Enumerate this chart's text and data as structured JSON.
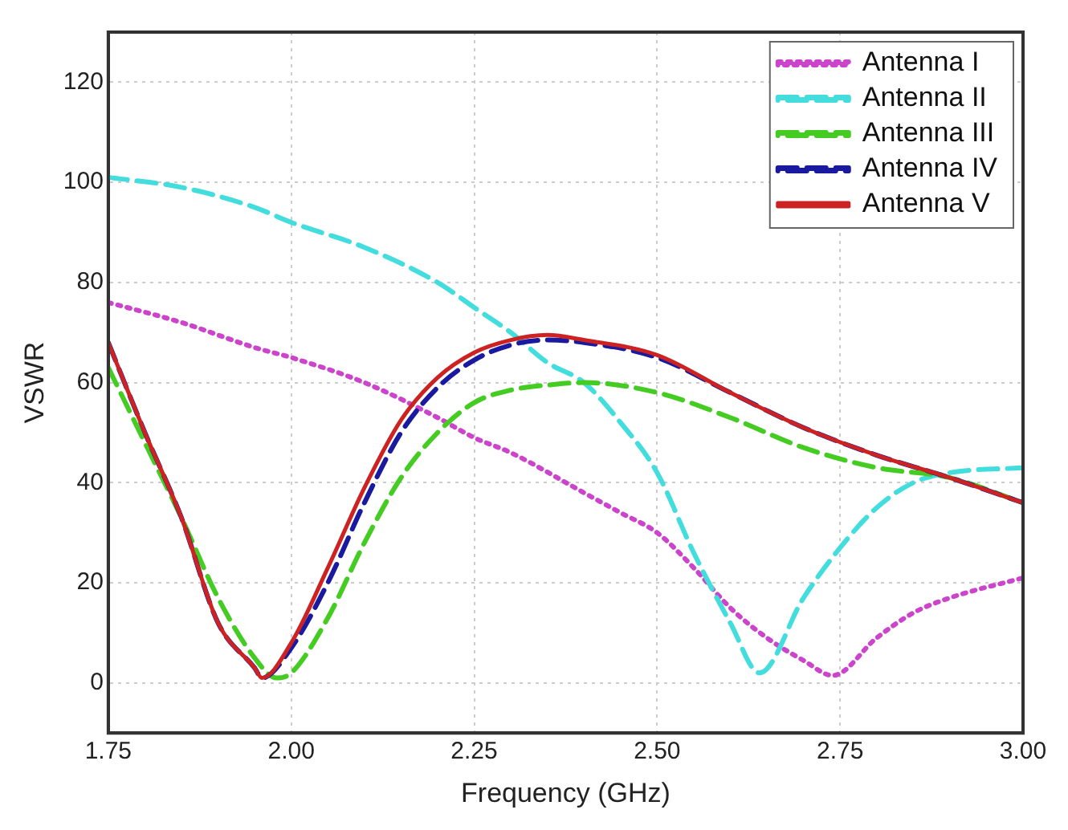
{
  "chart_data": {
    "type": "line",
    "xlabel": "Frequency (GHz)",
    "ylabel": "VSWR",
    "xlim": [
      1.75,
      3.0
    ],
    "xticks": [
      {
        "value": 1.75,
        "label": "1.75"
      },
      {
        "value": 2.0,
        "label": "2.00"
      },
      {
        "value": 2.25,
        "label": "2.25"
      },
      {
        "value": 2.5,
        "label": "2.50"
      },
      {
        "value": 2.75,
        "label": "2.75"
      },
      {
        "value": 3.0,
        "label": "3.00"
      }
    ],
    "ylim": [
      -10,
      130
    ],
    "yticks": [
      0,
      20,
      40,
      60,
      80,
      100,
      120
    ],
    "grid": true,
    "legend": "top right",
    "marker": "none",
    "series": [
      {
        "name": "Antenna I",
        "color": "#cc44cc",
        "line_style": "dotted",
        "x": [
          1.75,
          1.85,
          1.95,
          2.0,
          2.1,
          2.2,
          2.25,
          2.3,
          2.4,
          2.45,
          2.5,
          2.55,
          2.6,
          2.65,
          2.7,
          2.74,
          2.8,
          2.85,
          2.9,
          3.0
        ],
        "values": [
          76,
          72,
          67,
          65,
          60,
          53,
          49,
          46,
          38,
          34,
          30,
          23,
          15,
          9,
          4.5,
          1.5,
          9,
          14,
          17,
          21
        ]
      },
      {
        "name": "Antenna II",
        "color": "#44dddd",
        "line_style": "dashed",
        "x": [
          1.75,
          1.85,
          1.95,
          2.0,
          2.1,
          2.2,
          2.25,
          2.3,
          2.35,
          2.4,
          2.45,
          2.5,
          2.55,
          2.6,
          2.64,
          2.7,
          2.75,
          2.8,
          2.85,
          2.9,
          3.0
        ],
        "values": [
          101,
          99,
          95,
          92,
          87,
          80,
          75,
          70,
          64,
          60,
          52,
          42,
          26,
          12,
          2,
          17,
          27,
          35,
          40,
          42,
          43
        ]
      },
      {
        "name": "Antenna III",
        "color": "#44cc22",
        "line_style": "dashed",
        "x": [
          1.75,
          1.8,
          1.85,
          1.9,
          1.95,
          1.98,
          2.0,
          2.05,
          2.1,
          2.15,
          2.2,
          2.25,
          2.3,
          2.35,
          2.4,
          2.5,
          2.6,
          2.7,
          2.8,
          2.9,
          3.0
        ],
        "values": [
          63,
          48,
          33,
          17,
          5,
          1,
          2,
          13,
          28,
          41,
          50,
          56,
          58.5,
          59.5,
          60,
          58,
          53,
          47,
          43,
          41,
          36
        ]
      },
      {
        "name": "Antenna IV",
        "color": "#1a1aa0",
        "line_style": "dashed",
        "x": [
          1.75,
          1.8,
          1.85,
          1.9,
          1.95,
          1.96,
          2.0,
          2.05,
          2.1,
          2.15,
          2.2,
          2.25,
          2.3,
          2.35,
          2.4,
          2.5,
          2.6,
          2.7,
          2.8,
          2.9,
          3.0
        ],
        "values": [
          68,
          50,
          33,
          12,
          3,
          1,
          7,
          20,
          36,
          50,
          59,
          64.5,
          67.5,
          68.5,
          68,
          65,
          58,
          51,
          45.5,
          41,
          36
        ]
      },
      {
        "name": "Antenna V",
        "color": "#cc2222",
        "line_style": "solid",
        "x": [
          1.75,
          1.8,
          1.85,
          1.9,
          1.95,
          1.96,
          2.0,
          2.05,
          2.1,
          2.15,
          2.2,
          2.25,
          2.3,
          2.35,
          2.4,
          2.5,
          2.6,
          2.7,
          2.8,
          2.9,
          3.0
        ],
        "values": [
          68,
          50,
          33,
          12,
          3,
          1,
          8,
          23,
          39,
          52.5,
          61,
          66,
          68.5,
          69.5,
          68.5,
          65.5,
          58,
          51,
          45.5,
          41,
          36
        ]
      }
    ]
  }
}
